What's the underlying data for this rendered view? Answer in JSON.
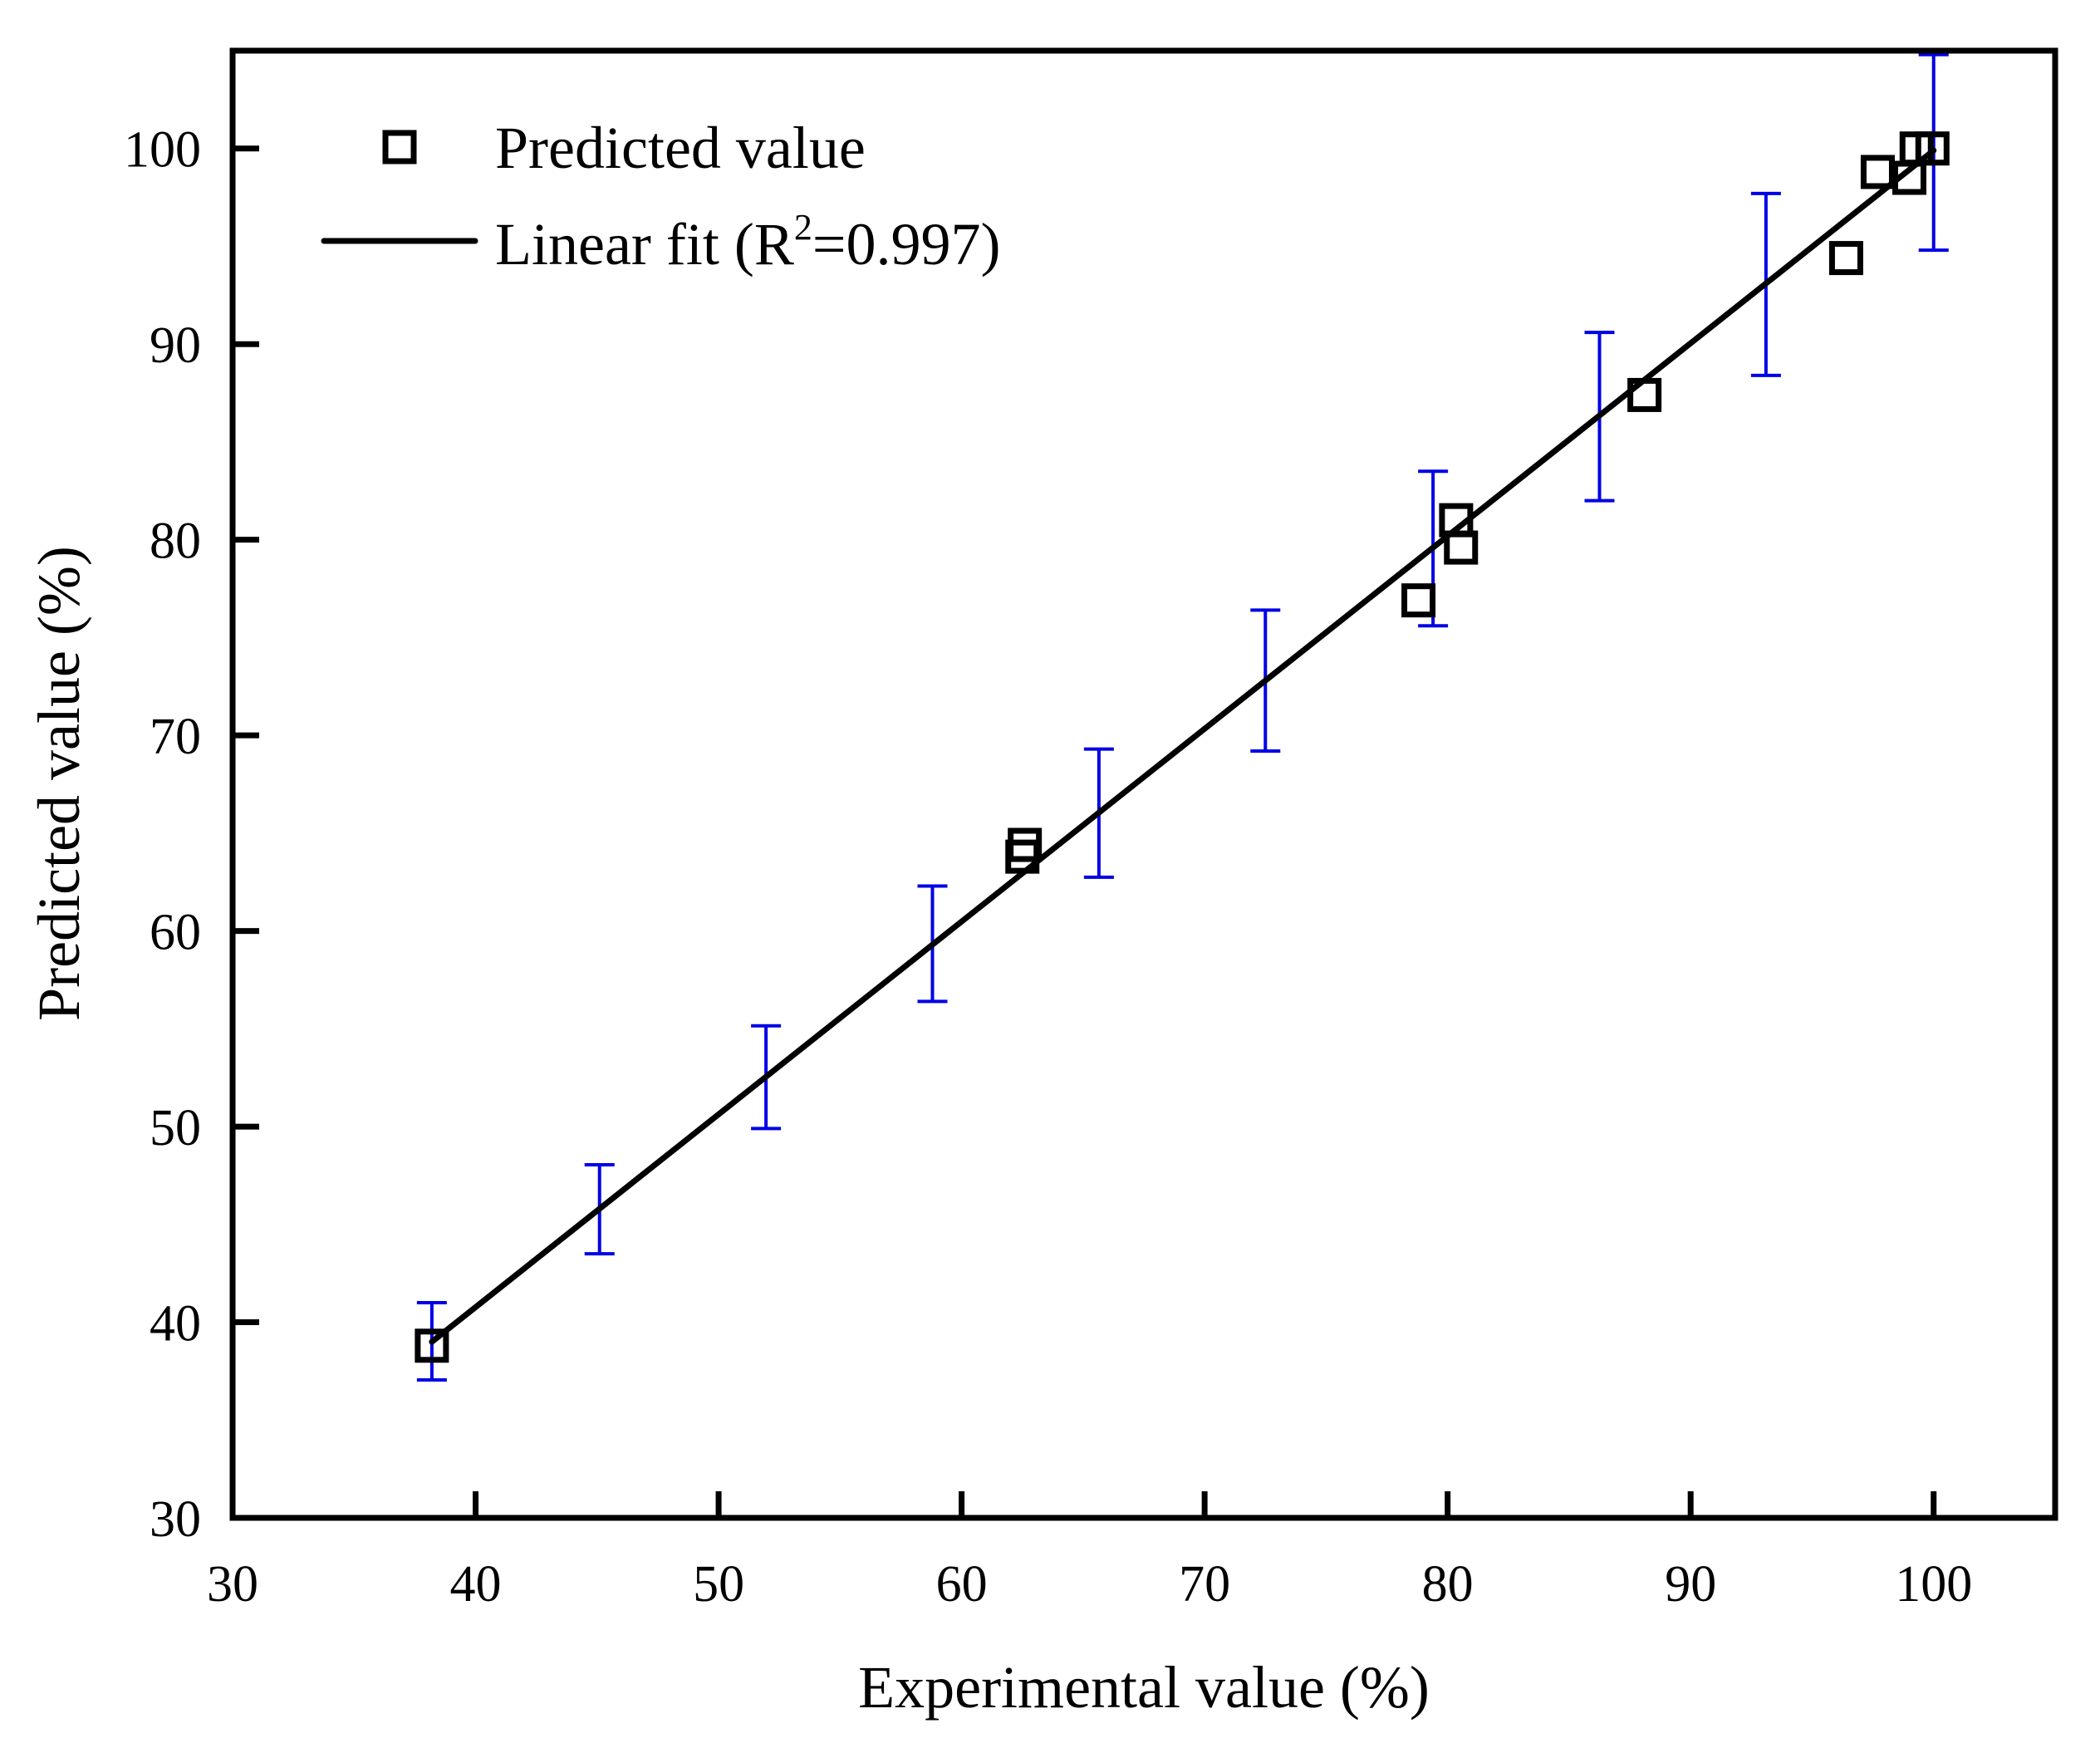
{
  "chart_data": {
    "type": "scatter",
    "title": "",
    "xlabel": "Experimental value (%)",
    "ylabel": "Predicted value (%)",
    "xlim": [
      30,
      105
    ],
    "ylim": [
      30,
      105
    ],
    "xticks": [
      30,
      40,
      50,
      60,
      70,
      80,
      90,
      100
    ],
    "yticks": [
      30,
      40,
      50,
      60,
      70,
      80,
      90,
      100
    ],
    "xtick_labels": [
      "30",
      "40",
      "50",
      "60",
      "70",
      "80",
      "90",
      "100"
    ],
    "ytick_labels": [
      "30",
      "40",
      "50",
      "60",
      "70",
      "80",
      "90",
      "100"
    ],
    "grid": false,
    "legend_position": "top-left",
    "colors": {
      "points": "#000000",
      "fit_line": "#000000",
      "error_bars": "#0000e6",
      "axes": "#000000"
    },
    "series": [
      {
        "name": "Predicted value",
        "type": "scatter",
        "marker": "open-square",
        "points": [
          {
            "x": 38.2,
            "y": 38.8
          },
          {
            "x": 62.6,
            "y": 64.4
          },
          {
            "x": 62.5,
            "y": 63.8
          },
          {
            "x": 78.8,
            "y": 76.9
          },
          {
            "x": 80.35,
            "y": 81.0
          },
          {
            "x": 80.55,
            "y": 79.6
          },
          {
            "x": 88.1,
            "y": 87.4
          },
          {
            "x": 96.4,
            "y": 94.4
          },
          {
            "x": 97.7,
            "y": 98.8
          },
          {
            "x": 99.0,
            "y": 98.5
          },
          {
            "x": 99.3,
            "y": 100.0
          },
          {
            "x": 99.95,
            "y": 100.0
          }
        ]
      },
      {
        "name": "Linear fit",
        "type": "line",
        "r_squared": 0.997,
        "start": {
          "x": 38.2,
          "y": 39.0
        },
        "end": {
          "x": 100.0,
          "y": 99.9
        }
      },
      {
        "name": "Error bars",
        "type": "errorbar",
        "bars": [
          {
            "x": 38.2,
            "low": 37.05,
            "high": 41.0
          },
          {
            "x": 45.1,
            "low": 43.5,
            "high": 48.05
          },
          {
            "x": 51.95,
            "low": 49.9,
            "high": 55.15
          },
          {
            "x": 58.8,
            "low": 56.4,
            "high": 62.3
          },
          {
            "x": 65.65,
            "low": 62.75,
            "high": 69.3
          },
          {
            "x": 72.5,
            "low": 69.2,
            "high": 76.4
          },
          {
            "x": 79.4,
            "low": 75.6,
            "high": 83.5
          },
          {
            "x": 86.25,
            "low": 82.0,
            "high": 90.6
          },
          {
            "x": 93.1,
            "low": 88.4,
            "high": 97.7
          },
          {
            "x": 100.0,
            "low": 94.8,
            "high": 104.8
          }
        ]
      }
    ],
    "legend": {
      "entries": [
        {
          "label": "Predicted value",
          "symbol": "open-square"
        },
        {
          "label_prefix": "Linear fit (R",
          "label_sup": "2",
          "label_suffix": "=0.997)",
          "symbol": "line"
        }
      ]
    }
  }
}
